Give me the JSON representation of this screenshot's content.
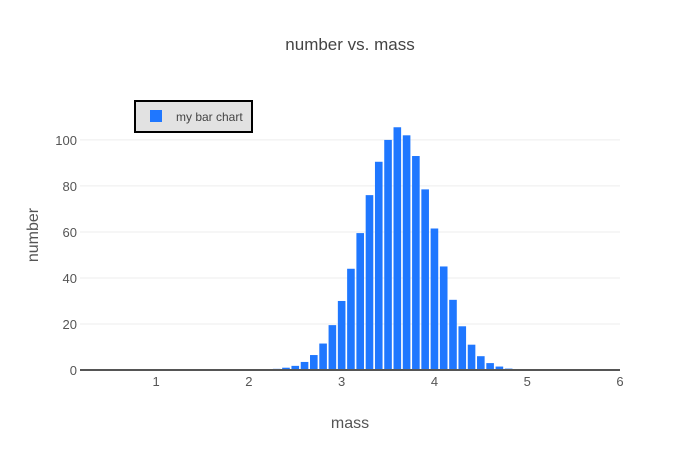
{
  "chart_data": {
    "type": "bar",
    "title": "number vs. mass",
    "xlabel": "mass",
    "ylabel": "number",
    "xlim": [
      0.18,
      6.0
    ],
    "ylim": [
      0,
      113
    ],
    "xticks": [
      "1",
      "2",
      "3",
      "4",
      "5",
      "6"
    ],
    "yticks": [
      "0",
      "20",
      "40",
      "60",
      "80",
      "100"
    ],
    "grid": true,
    "legend_position": "top-left",
    "series": [
      {
        "name": "my bar chart",
        "color": "#1f77ff",
        "x": [
          2.2,
          2.3,
          2.4,
          2.5,
          2.6,
          2.7,
          2.8,
          2.9,
          3.0,
          3.1,
          3.2,
          3.3,
          3.4,
          3.5,
          3.6,
          3.7,
          3.8,
          3.9,
          4.0,
          4.1,
          4.2,
          4.3,
          4.4,
          4.5,
          4.6,
          4.7,
          4.8,
          4.9,
          5.0
        ],
        "values": [
          0.2,
          0.5,
          1.0,
          1.8,
          3.5,
          6.5,
          11.5,
          19.5,
          30,
          44,
          59.5,
          76,
          90.5,
          100,
          105.5,
          102,
          93,
          78.5,
          61.5,
          45,
          30.5,
          19,
          11,
          6,
          3,
          1.5,
          0.6,
          0.2,
          0.1
        ]
      }
    ]
  }
}
